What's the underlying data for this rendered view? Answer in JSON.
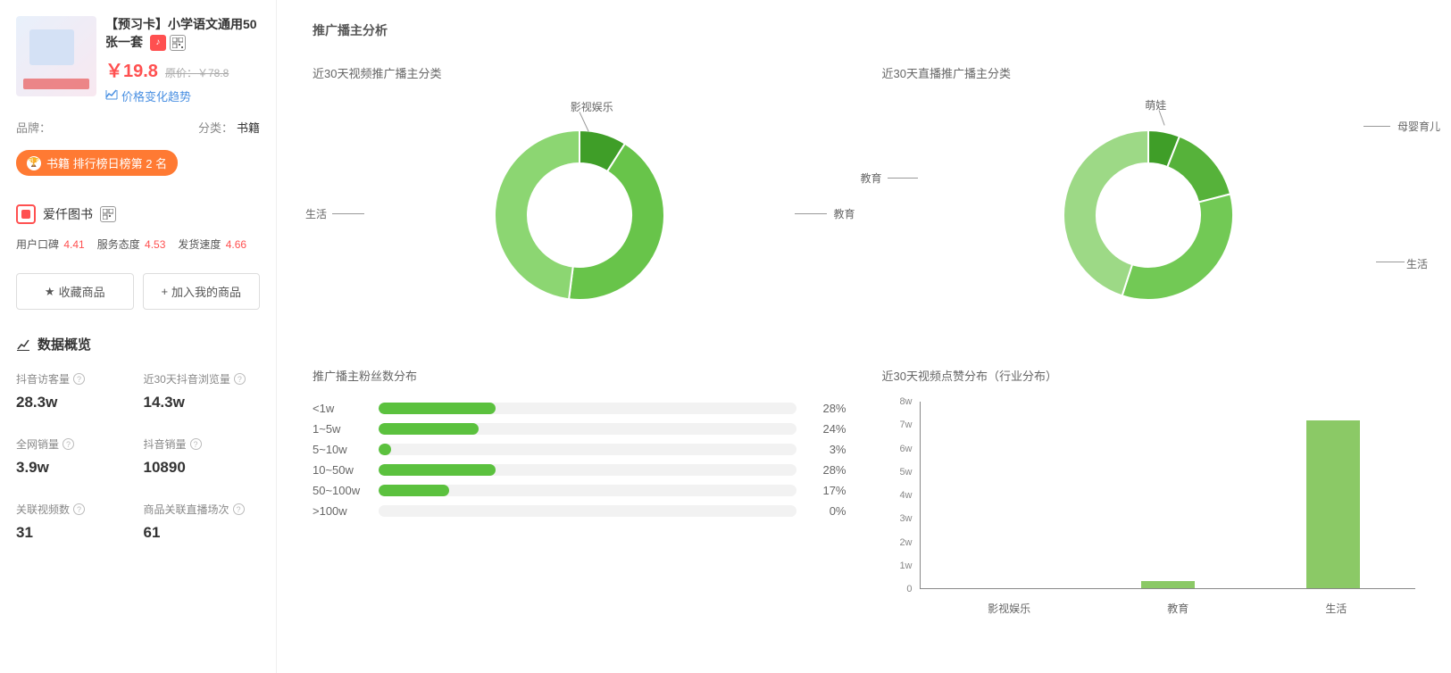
{
  "product": {
    "title": "【预习卡】小学语文通用50张一套",
    "price": "￥19.8",
    "orig_price_label": "原价：",
    "orig_price": "￥78.8",
    "trend_link": "价格变化趋势",
    "brand_label": "品牌：",
    "category_label": "分类：",
    "category_value": "书籍",
    "rank_badge": "书籍 排行榜日榜第 2 名",
    "shop_name": "爱仟图书",
    "ratings": [
      {
        "label": "用户口碑",
        "value": "4.41"
      },
      {
        "label": "服务态度",
        "value": "4.53"
      },
      {
        "label": "发货速度",
        "value": "4.66"
      }
    ],
    "btn_favorite": "收藏商品",
    "btn_add": "加入我的商品"
  },
  "overview": {
    "header": "数据概览",
    "stats": [
      {
        "label": "抖音访客量",
        "value": "28.3w"
      },
      {
        "label": "近30天抖音浏览量",
        "value": "14.3w"
      },
      {
        "label": "全网销量",
        "value": "3.9w"
      },
      {
        "label": "抖音销量",
        "value": "10890"
      },
      {
        "label": "关联视频数",
        "value": "31"
      },
      {
        "label": "商品关联直播场次",
        "value": "61"
      }
    ]
  },
  "analysis": {
    "header": "推广播主分析",
    "donut1": {
      "title": "近30天视频推广播主分类",
      "segments": [
        {
          "label": "影视娱乐",
          "value": 9,
          "color": "#3f9e28"
        },
        {
          "label": "教育",
          "value": 43,
          "color": "#68c44a"
        },
        {
          "label": "生活",
          "value": 48,
          "color": "#8cd672"
        }
      ]
    },
    "donut2": {
      "title": "近30天直播推广播主分类",
      "segments": [
        {
          "label": "萌娃",
          "value": 6,
          "color": "#3f9e28"
        },
        {
          "label": "母婴育儿",
          "value": 15,
          "color": "#56b23a"
        },
        {
          "label": "生活",
          "value": 34,
          "color": "#72c955"
        },
        {
          "label": "教育",
          "value": 45,
          "color": "#9dd986"
        }
      ]
    },
    "fanbars": {
      "title": "推广播主粉丝数分布",
      "bars": [
        {
          "label": "<1w",
          "value": 28
        },
        {
          "label": "1~5w",
          "value": 24
        },
        {
          "label": "5~10w",
          "value": 3
        },
        {
          "label": "10~50w",
          "value": 28
        },
        {
          "label": "50~100w",
          "value": 17
        },
        {
          "label": ">100w",
          "value": 0
        }
      ],
      "bar_color": "#5bc13e",
      "track_color": "#f2f2f2"
    },
    "columnchart": {
      "title": "近30天视频点赞分布（行业分布）",
      "y_max": 8,
      "y_ticks": [
        "0",
        "1w",
        "2w",
        "3w",
        "4w",
        "5w",
        "6w",
        "7w",
        "8w"
      ],
      "categories": [
        "影视娱乐",
        "教育",
        "生活"
      ],
      "values": [
        0,
        0.3,
        7.2
      ],
      "bar_color": "#8bc966"
    }
  }
}
